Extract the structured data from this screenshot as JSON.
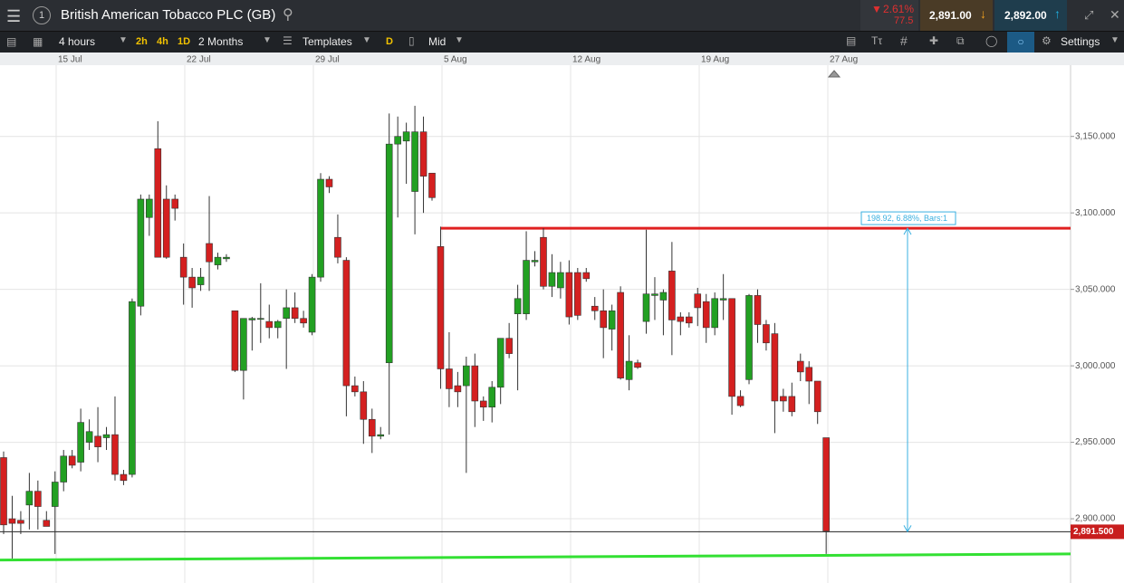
{
  "toolbar": {
    "instrument": "British American Tobacco PLC (GB)",
    "change_pct": "2.61%",
    "change_pts": "77.5",
    "sell_price": "2,891.00",
    "buy_price": "2,892.00",
    "interval": "4 hours",
    "quick_intervals": [
      "2h",
      "4h",
      "1D"
    ],
    "range": "2 Months",
    "templates": "Templates",
    "draw_mode": "D",
    "price_mode": "Mid",
    "settings": "Settings"
  },
  "chart_data": {
    "type": "candlestick",
    "up_color": "#22a022",
    "down_color": "#d42020",
    "grid": true,
    "xlabels": [
      "15 Jul",
      "22 Jul",
      "29 Jul",
      "5 Aug",
      "12 Aug",
      "19 Aug",
      "27 Aug"
    ],
    "ylim": [
      2858,
      3196
    ],
    "yticks": [
      {
        "value": 2900,
        "label": "2,900.000"
      },
      {
        "value": 2950,
        "label": "2,950.000"
      },
      {
        "value": 3000,
        "label": "3,000.000"
      },
      {
        "value": 3050,
        "label": "3,050.000"
      },
      {
        "value": 3100,
        "label": "3,100.000"
      },
      {
        "value": 3150,
        "label": "3,150.000"
      }
    ],
    "open": [
      2940,
      2900,
      2899,
      2909,
      2918,
      2899,
      2908,
      2924,
      2941,
      2937,
      2950,
      2954,
      2953,
      2955,
      2929,
      2929,
      3039,
      3097,
      3142,
      3109,
      3109,
      3071,
      3058,
      3053,
      3080,
      3066,
      3070,
      3036,
      2997,
      3030,
      3031,
      3029,
      3025,
      3031,
      3038,
      3031,
      3022,
      3058,
      3122,
      3084,
      3069,
      2987,
      2983,
      2965,
      2954,
      3002,
      3145,
      3147,
      3114,
      3153,
      3126,
      3078,
      2998,
      2987,
      2987,
      3000,
      2977,
      2973,
      2986,
      3018,
      3034,
      3034,
      3068,
      3084,
      3052,
      3051,
      3061,
      3061,
      3061,
      3039,
      3036,
      3024,
      3048,
      2991,
      3002,
      3029,
      3046,
      3043,
      3062,
      3032,
      3032,
      3047,
      3042,
      3025,
      3043,
      3044,
      2980,
      2991,
      3046,
      3027,
      3021,
      2980,
      2980,
      3003,
      2999,
      2990,
      2953
    ],
    "high": [
      2944,
      2915,
      2905,
      2930,
      2925,
      2905,
      2931,
      2945,
      2945,
      2972,
      2965,
      2973,
      2960,
      2980,
      2932,
      3044,
      3112,
      3112,
      3160,
      3118,
      3112,
      3080,
      3064,
      3064,
      3111,
      3074,
      3073,
      3036,
      3031,
      3032,
      3054,
      3040,
      3030,
      3050,
      3048,
      3036,
      3060,
      3126,
      3124,
      3099,
      3071,
      2993,
      2990,
      2972,
      2960,
      3165,
      3163,
      3159,
      3170,
      3163,
      3126,
      3091,
      3022,
      2996,
      3006,
      3008,
      2980,
      2990,
      3018,
      3028,
      3053,
      3088,
      3075,
      3090,
      3073,
      3068,
      3069,
      3064,
      3064,
      3045,
      3050,
      3040,
      3052,
      3020,
      3004,
      3089,
      3058,
      3050,
      3081,
      3035,
      3035,
      3051,
      3047,
      3048,
      3060,
      3044,
      2984,
      3047,
      3050,
      3030,
      3028,
      2985,
      2989,
      3008,
      3003,
      2990,
      2953
    ],
    "low": [
      2890,
      2874,
      2890,
      2893,
      2893,
      2895,
      2877,
      2918,
      2933,
      2931,
      2945,
      2937,
      2945,
      2925,
      2922,
      2927,
      3033,
      3085,
      3071,
      3070,
      3095,
      3040,
      3038,
      3049,
      3049,
      3063,
      3068,
      2996,
      2978,
      3010,
      3015,
      3018,
      3018,
      2998,
      3028,
      3025,
      3020,
      3055,
      3113,
      3067,
      2967,
      2980,
      2949,
      2943,
      2952,
      2955,
      3097,
      3119,
      3086,
      3100,
      3108,
      2985,
      2973,
      2973,
      2930,
      2960,
      2964,
      2963,
      2975,
      3005,
      2984,
      3030,
      3065,
      3050,
      3045,
      3044,
      3027,
      3030,
      3055,
      3030,
      3005,
      3010,
      2991,
      2984,
      2998,
      3021,
      3030,
      3020,
      3007,
      3020,
      3025,
      3026,
      3015,
      3020,
      3030,
      2968,
      2973,
      2988,
      3015,
      3010,
      2956,
      2970,
      2967,
      2990,
      2975,
      2962,
      2877
    ],
    "close": [
      2896,
      2897,
      2897,
      2918,
      2908,
      2895,
      2924,
      2941,
      2935,
      2963,
      2957,
      2947,
      2955,
      2929,
      2925,
      3042,
      3109,
      3109,
      3071,
      3071,
      3103,
      3058,
      3051,
      3058,
      3068,
      3071,
      3071,
      2997,
      3031,
      3031,
      3031,
      3025,
      3029,
      3038,
      3031,
      3028,
      3058,
      3122,
      3117,
      3071,
      2987,
      2983,
      2965,
      2954,
      2955,
      3145,
      3150,
      3153,
      3153,
      3124,
      3110,
      2998,
      2985,
      2983,
      3000,
      2977,
      2973,
      2986,
      3018,
      3008,
      3044,
      3069,
      3069,
      3052,
      3061,
      3061,
      3032,
      3033,
      3057,
      3036,
      3025,
      3036,
      2992,
      3003,
      2999,
      3047,
      3047,
      3048,
      3030,
      3029,
      3028,
      3038,
      3025,
      3044,
      3044,
      2980,
      2974,
      3046,
      3027,
      3015,
      2977,
      2977,
      2970,
      2996,
      2990,
      2970,
      2892
    ],
    "resistance_line": 3090,
    "support_line": [
      2873,
      2877
    ],
    "last_price": 2891.5,
    "last_price_label": "2,891.500",
    "measure_label": "198.92, 6.88%, Bars:1"
  }
}
